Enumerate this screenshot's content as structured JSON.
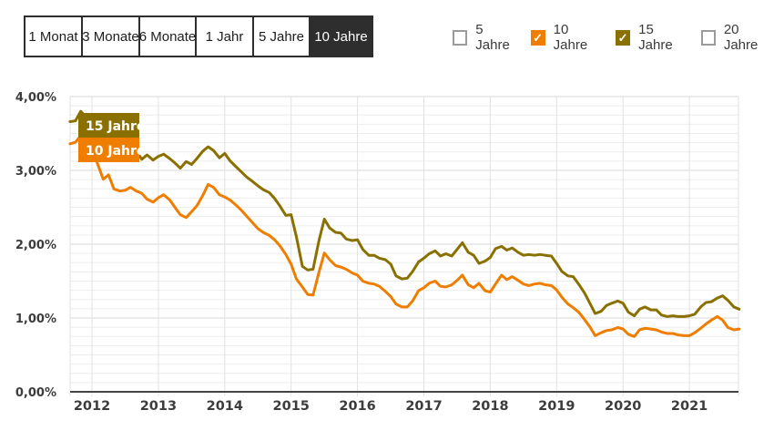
{
  "controls": {
    "period_buttons": {
      "options": [
        "1 Monat",
        "3 Monate",
        "6 Monate",
        "1 Jahr",
        "5 Jahre",
        "10 Jahre"
      ],
      "selected": "10 Jahre"
    },
    "series_toggles": [
      {
        "label": "5 Jahre",
        "checked": false,
        "color": "#9b9b9b"
      },
      {
        "label": "10 Jahre",
        "checked": true,
        "color": "#ee7d00"
      },
      {
        "label": "15 Jahre",
        "checked": true,
        "color": "#8a7000"
      },
      {
        "label": "20 Jahre",
        "checked": false,
        "color": "#9b9b9b"
      }
    ],
    "check_glyph": "✓"
  },
  "colors": {
    "accent_orange": "#ee7d00",
    "accent_olive": "#8a7000",
    "selected_button_bg": "#2e2e2e",
    "button_border": "#2e2e2e",
    "grid_minor": "#ededed",
    "grid_major": "#d7d7d7",
    "grid_vertical": "#e2e2e2",
    "axis_line": "#444444",
    "tick_text": "#3c3c3c",
    "badge_text": "#ffffff"
  },
  "chart_data": {
    "type": "line",
    "title": "",
    "xlabel": "",
    "ylabel": "",
    "unit": "%",
    "ylim": [
      0,
      4
    ],
    "xlim": [
      2011.67,
      2021.75
    ],
    "y_ticks": [
      "4,00%",
      "3,00%",
      "2,00%",
      "1,00%",
      "0,00%"
    ],
    "y_tick_values": [
      4,
      3,
      2,
      1,
      0
    ],
    "x_ticks": [
      2012,
      2013,
      2014,
      2015,
      2016,
      2017,
      2018,
      2019,
      2020,
      2021
    ],
    "grid": {
      "minor_per_major": 8,
      "vertical_at_years": true
    },
    "legend_position": "inline-badges-top-left",
    "series": [
      {
        "name": "15 Jahre",
        "badge": "15 Jahre",
        "color": "#8a7000",
        "points": [
          [
            2011.67,
            3.66
          ],
          [
            2011.75,
            3.67
          ],
          [
            2011.83,
            3.8
          ],
          [
            2011.92,
            3.72
          ],
          [
            2012.0,
            3.6
          ],
          [
            2012.08,
            3.5
          ],
          [
            2012.17,
            3.42
          ],
          [
            2012.25,
            3.45
          ],
          [
            2012.33,
            3.38
          ],
          [
            2012.42,
            3.33
          ],
          [
            2012.5,
            3.35
          ],
          [
            2012.58,
            3.3
          ],
          [
            2012.67,
            3.26
          ],
          [
            2012.75,
            3.15
          ],
          [
            2012.83,
            3.21
          ],
          [
            2012.92,
            3.14
          ],
          [
            2013.0,
            3.19
          ],
          [
            2013.08,
            3.22
          ],
          [
            2013.17,
            3.16
          ],
          [
            2013.25,
            3.1
          ],
          [
            2013.33,
            3.03
          ],
          [
            2013.42,
            3.12
          ],
          [
            2013.5,
            3.08
          ],
          [
            2013.58,
            3.16
          ],
          [
            2013.67,
            3.26
          ],
          [
            2013.75,
            3.32
          ],
          [
            2013.83,
            3.27
          ],
          [
            2013.92,
            3.17
          ],
          [
            2014.0,
            3.23
          ],
          [
            2014.08,
            3.13
          ],
          [
            2014.17,
            3.05
          ],
          [
            2014.25,
            2.98
          ],
          [
            2014.33,
            2.91
          ],
          [
            2014.42,
            2.85
          ],
          [
            2014.5,
            2.79
          ],
          [
            2014.58,
            2.74
          ],
          [
            2014.67,
            2.7
          ],
          [
            2014.75,
            2.62
          ],
          [
            2014.83,
            2.52
          ],
          [
            2014.92,
            2.39
          ],
          [
            2015.0,
            2.4
          ],
          [
            2015.08,
            2.1
          ],
          [
            2015.17,
            1.7
          ],
          [
            2015.25,
            1.65
          ],
          [
            2015.33,
            1.66
          ],
          [
            2015.42,
            2.05
          ],
          [
            2015.5,
            2.34
          ],
          [
            2015.58,
            2.22
          ],
          [
            2015.67,
            2.16
          ],
          [
            2015.75,
            2.15
          ],
          [
            2015.83,
            2.07
          ],
          [
            2015.92,
            2.05
          ],
          [
            2016.0,
            2.06
          ],
          [
            2016.08,
            1.93
          ],
          [
            2016.17,
            1.85
          ],
          [
            2016.25,
            1.85
          ],
          [
            2016.33,
            1.81
          ],
          [
            2016.42,
            1.79
          ],
          [
            2016.5,
            1.73
          ],
          [
            2016.58,
            1.57
          ],
          [
            2016.67,
            1.53
          ],
          [
            2016.75,
            1.54
          ],
          [
            2016.83,
            1.63
          ],
          [
            2016.92,
            1.76
          ],
          [
            2017.0,
            1.81
          ],
          [
            2017.08,
            1.87
          ],
          [
            2017.17,
            1.91
          ],
          [
            2017.25,
            1.84
          ],
          [
            2017.33,
            1.87
          ],
          [
            2017.42,
            1.84
          ],
          [
            2017.5,
            1.93
          ],
          [
            2017.58,
            2.02
          ],
          [
            2017.67,
            1.89
          ],
          [
            2017.75,
            1.85
          ],
          [
            2017.83,
            1.74
          ],
          [
            2017.92,
            1.77
          ],
          [
            2018.0,
            1.82
          ],
          [
            2018.08,
            1.94
          ],
          [
            2018.17,
            1.97
          ],
          [
            2018.25,
            1.92
          ],
          [
            2018.33,
            1.95
          ],
          [
            2018.42,
            1.89
          ],
          [
            2018.5,
            1.85
          ],
          [
            2018.58,
            1.86
          ],
          [
            2018.67,
            1.85
          ],
          [
            2018.75,
            1.86
          ],
          [
            2018.83,
            1.85
          ],
          [
            2018.92,
            1.84
          ],
          [
            2019.0,
            1.74
          ],
          [
            2019.08,
            1.63
          ],
          [
            2019.17,
            1.57
          ],
          [
            2019.25,
            1.56
          ],
          [
            2019.33,
            1.46
          ],
          [
            2019.42,
            1.34
          ],
          [
            2019.5,
            1.2
          ],
          [
            2019.58,
            1.06
          ],
          [
            2019.67,
            1.09
          ],
          [
            2019.75,
            1.17
          ],
          [
            2019.83,
            1.2
          ],
          [
            2019.92,
            1.23
          ],
          [
            2020.0,
            1.2
          ],
          [
            2020.08,
            1.08
          ],
          [
            2020.17,
            1.03
          ],
          [
            2020.25,
            1.12
          ],
          [
            2020.33,
            1.15
          ],
          [
            2020.42,
            1.11
          ],
          [
            2020.5,
            1.11
          ],
          [
            2020.58,
            1.04
          ],
          [
            2020.67,
            1.02
          ],
          [
            2020.75,
            1.03
          ],
          [
            2020.83,
            1.02
          ],
          [
            2020.92,
            1.02
          ],
          [
            2021.0,
            1.03
          ],
          [
            2021.08,
            1.05
          ],
          [
            2021.17,
            1.15
          ],
          [
            2021.25,
            1.21
          ],
          [
            2021.33,
            1.22
          ],
          [
            2021.42,
            1.27
          ],
          [
            2021.5,
            1.3
          ],
          [
            2021.58,
            1.24
          ],
          [
            2021.67,
            1.15
          ],
          [
            2021.75,
            1.12
          ]
        ]
      },
      {
        "name": "10 Jahre",
        "badge": "10 Jahre",
        "color": "#ee7d00",
        "points": [
          [
            2011.67,
            3.36
          ],
          [
            2011.75,
            3.38
          ],
          [
            2011.83,
            3.47
          ],
          [
            2011.92,
            3.45
          ],
          [
            2012.0,
            3.33
          ],
          [
            2012.08,
            3.1
          ],
          [
            2012.17,
            2.88
          ],
          [
            2012.25,
            2.94
          ],
          [
            2012.33,
            2.75
          ],
          [
            2012.42,
            2.72
          ],
          [
            2012.5,
            2.73
          ],
          [
            2012.58,
            2.77
          ],
          [
            2012.67,
            2.72
          ],
          [
            2012.75,
            2.69
          ],
          [
            2012.83,
            2.61
          ],
          [
            2012.92,
            2.57
          ],
          [
            2013.0,
            2.63
          ],
          [
            2013.08,
            2.67
          ],
          [
            2013.17,
            2.6
          ],
          [
            2013.25,
            2.5
          ],
          [
            2013.33,
            2.4
          ],
          [
            2013.42,
            2.36
          ],
          [
            2013.5,
            2.44
          ],
          [
            2013.58,
            2.52
          ],
          [
            2013.67,
            2.66
          ],
          [
            2013.75,
            2.81
          ],
          [
            2013.83,
            2.77
          ],
          [
            2013.92,
            2.67
          ],
          [
            2014.0,
            2.64
          ],
          [
            2014.08,
            2.6
          ],
          [
            2014.17,
            2.53
          ],
          [
            2014.25,
            2.46
          ],
          [
            2014.33,
            2.38
          ],
          [
            2014.42,
            2.29
          ],
          [
            2014.5,
            2.21
          ],
          [
            2014.58,
            2.16
          ],
          [
            2014.67,
            2.12
          ],
          [
            2014.75,
            2.06
          ],
          [
            2014.83,
            1.98
          ],
          [
            2014.92,
            1.86
          ],
          [
            2015.0,
            1.73
          ],
          [
            2015.08,
            1.53
          ],
          [
            2015.17,
            1.42
          ],
          [
            2015.25,
            1.32
          ],
          [
            2015.33,
            1.31
          ],
          [
            2015.42,
            1.62
          ],
          [
            2015.5,
            1.88
          ],
          [
            2015.58,
            1.79
          ],
          [
            2015.67,
            1.71
          ],
          [
            2015.75,
            1.69
          ],
          [
            2015.83,
            1.66
          ],
          [
            2015.92,
            1.61
          ],
          [
            2016.0,
            1.58
          ],
          [
            2016.08,
            1.5
          ],
          [
            2016.17,
            1.47
          ],
          [
            2016.25,
            1.46
          ],
          [
            2016.33,
            1.43
          ],
          [
            2016.42,
            1.36
          ],
          [
            2016.5,
            1.29
          ],
          [
            2016.58,
            1.19
          ],
          [
            2016.67,
            1.15
          ],
          [
            2016.75,
            1.15
          ],
          [
            2016.83,
            1.23
          ],
          [
            2016.92,
            1.37
          ],
          [
            2017.0,
            1.41
          ],
          [
            2017.08,
            1.47
          ],
          [
            2017.17,
            1.5
          ],
          [
            2017.25,
            1.43
          ],
          [
            2017.33,
            1.42
          ],
          [
            2017.42,
            1.45
          ],
          [
            2017.5,
            1.51
          ],
          [
            2017.58,
            1.58
          ],
          [
            2017.67,
            1.45
          ],
          [
            2017.75,
            1.41
          ],
          [
            2017.83,
            1.47
          ],
          [
            2017.92,
            1.37
          ],
          [
            2018.0,
            1.35
          ],
          [
            2018.08,
            1.46
          ],
          [
            2018.17,
            1.58
          ],
          [
            2018.25,
            1.52
          ],
          [
            2018.33,
            1.56
          ],
          [
            2018.42,
            1.51
          ],
          [
            2018.5,
            1.46
          ],
          [
            2018.58,
            1.44
          ],
          [
            2018.67,
            1.46
          ],
          [
            2018.75,
            1.47
          ],
          [
            2018.83,
            1.45
          ],
          [
            2018.92,
            1.44
          ],
          [
            2019.0,
            1.38
          ],
          [
            2019.08,
            1.28
          ],
          [
            2019.17,
            1.19
          ],
          [
            2019.25,
            1.14
          ],
          [
            2019.33,
            1.08
          ],
          [
            2019.42,
            0.98
          ],
          [
            2019.5,
            0.88
          ],
          [
            2019.58,
            0.76
          ],
          [
            2019.67,
            0.8
          ],
          [
            2019.75,
            0.83
          ],
          [
            2019.83,
            0.84
          ],
          [
            2019.92,
            0.87
          ],
          [
            2020.0,
            0.85
          ],
          [
            2020.08,
            0.78
          ],
          [
            2020.17,
            0.75
          ],
          [
            2020.25,
            0.84
          ],
          [
            2020.33,
            0.86
          ],
          [
            2020.42,
            0.85
          ],
          [
            2020.5,
            0.84
          ],
          [
            2020.58,
            0.81
          ],
          [
            2020.67,
            0.79
          ],
          [
            2020.75,
            0.79
          ],
          [
            2020.83,
            0.77
          ],
          [
            2020.92,
            0.76
          ],
          [
            2021.0,
            0.76
          ],
          [
            2021.08,
            0.8
          ],
          [
            2021.17,
            0.86
          ],
          [
            2021.25,
            0.92
          ],
          [
            2021.33,
            0.97
          ],
          [
            2021.42,
            1.02
          ],
          [
            2021.5,
            0.97
          ],
          [
            2021.58,
            0.87
          ],
          [
            2021.67,
            0.84
          ],
          [
            2021.75,
            0.85
          ]
        ]
      }
    ]
  }
}
